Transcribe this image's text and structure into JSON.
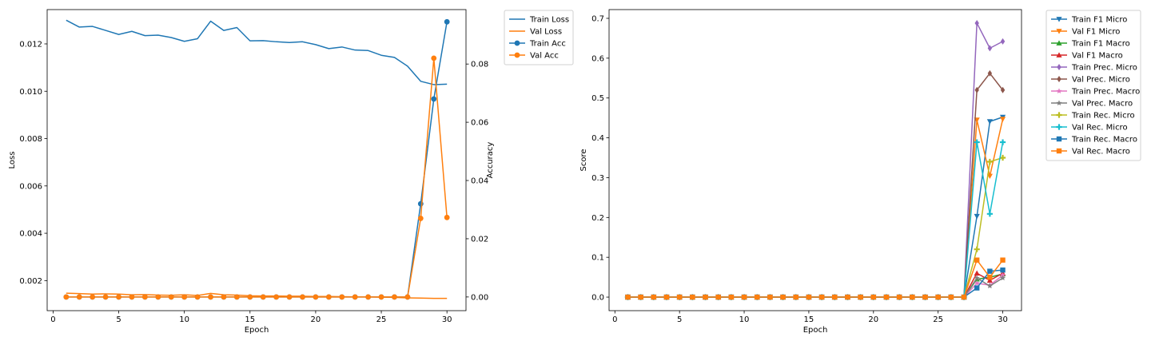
{
  "chart_data": [
    {
      "type": "line",
      "xlabel": "Epoch",
      "ylabel": "Loss",
      "y2label": "Accuracy",
      "legend_position": "outside upper right",
      "x": [
        1,
        2,
        3,
        4,
        5,
        6,
        7,
        8,
        9,
        10,
        11,
        12,
        13,
        14,
        15,
        16,
        17,
        18,
        19,
        20,
        21,
        22,
        23,
        24,
        25,
        26,
        27,
        28,
        29,
        30
      ],
      "xlim": [
        -0.45,
        31.45
      ],
      "ylim": [
        0.00073,
        0.01345
      ],
      "y2lim": [
        -0.0047,
        0.0987
      ],
      "xticks": [
        0,
        5,
        10,
        15,
        20,
        25,
        30
      ],
      "yticks": [
        0.002,
        0.004,
        0.006,
        0.008,
        0.01,
        0.012
      ],
      "ytick_labels": [
        "0.002",
        "0.004",
        "0.006",
        "0.008",
        "0.010",
        "0.012"
      ],
      "y2ticks": [
        0.0,
        0.02,
        0.04,
        0.06,
        0.08
      ],
      "y2tick_labels": [
        "0.00",
        "0.02",
        "0.04",
        "0.06",
        "0.08"
      ],
      "series": [
        {
          "name": "Train Loss",
          "axis": "left",
          "color": "#1f77b4",
          "marker": "none",
          "values": [
            0.013,
            0.01271,
            0.01274,
            0.01257,
            0.0124,
            0.01253,
            0.01235,
            0.01237,
            0.01227,
            0.01211,
            0.01222,
            0.01296,
            0.01257,
            0.01269,
            0.01213,
            0.01214,
            0.01209,
            0.01206,
            0.01209,
            0.01197,
            0.0118,
            0.01187,
            0.01174,
            0.01172,
            0.01152,
            0.01143,
            0.01106,
            0.01042,
            0.01028,
            0.0103
          ]
        },
        {
          "name": "Val Loss",
          "axis": "left",
          "color": "#ff7f0e",
          "marker": "none",
          "values": [
            0.00147,
            0.00145,
            0.00143,
            0.00144,
            0.00143,
            0.0014,
            0.00141,
            0.00139,
            0.00138,
            0.0014,
            0.00137,
            0.00146,
            0.0014,
            0.00139,
            0.00136,
            0.00135,
            0.00135,
            0.00134,
            0.00134,
            0.00133,
            0.00133,
            0.00132,
            0.00131,
            0.00131,
            0.0013,
            0.00129,
            0.00127,
            0.00126,
            0.00125,
            0.00125
          ]
        },
        {
          "name": "Train Acc",
          "axis": "right",
          "color": "#1f77b4",
          "marker": "circle",
          "values": [
            0,
            0,
            0,
            0,
            0,
            0,
            0,
            0,
            0,
            0,
            0,
            0,
            0,
            0,
            0,
            0,
            0,
            0,
            0,
            0,
            0,
            0,
            0,
            0,
            0,
            0,
            0,
            0.032,
            0.068,
            0.0945
          ]
        },
        {
          "name": "Val Acc",
          "axis": "right",
          "color": "#ff7f0e",
          "marker": "circle",
          "values": [
            0,
            0,
            0,
            0,
            0,
            0,
            0,
            0,
            0,
            0,
            0,
            0,
            0,
            0,
            0,
            0,
            0,
            0,
            0,
            0,
            0,
            0,
            0,
            0,
            0,
            0,
            0,
            0.027,
            0.082,
            0.0273
          ]
        }
      ]
    },
    {
      "type": "line",
      "xlabel": "Epoch",
      "ylabel": "Score",
      "legend_position": "outside upper right",
      "x": [
        1,
        2,
        3,
        4,
        5,
        6,
        7,
        8,
        9,
        10,
        11,
        12,
        13,
        14,
        15,
        16,
        17,
        18,
        19,
        20,
        21,
        22,
        23,
        24,
        25,
        26,
        27,
        28,
        29,
        30
      ],
      "xlim": [
        -0.45,
        31.45
      ],
      "ylim": [
        -0.034,
        0.722
      ],
      "xticks": [
        0,
        5,
        10,
        15,
        20,
        25,
        30
      ],
      "yticks": [
        0.0,
        0.1,
        0.2,
        0.3,
        0.4,
        0.5,
        0.6,
        0.7
      ],
      "ytick_labels": [
        "0.0",
        "0.1",
        "0.2",
        "0.3",
        "0.4",
        "0.5",
        "0.6",
        "0.7"
      ],
      "series": [
        {
          "name": "Train F1 Micro",
          "color": "#1f77b4",
          "marker": "triangle-down",
          "tail": [
            0.203,
            0.441,
            0.452
          ]
        },
        {
          "name": "Val F1 Micro",
          "color": "#ff7f0e",
          "marker": "triangle-down",
          "tail": [
            0.445,
            0.304,
            0.447
          ]
        },
        {
          "name": "Train F1 Macro",
          "color": "#2ca02c",
          "marker": "triangle-up",
          "tail": [
            0.045,
            0.05,
            0.058
          ]
        },
        {
          "name": "Val F1 Macro",
          "color": "#d62728",
          "marker": "triangle-up",
          "tail": [
            0.06,
            0.042,
            0.06
          ]
        },
        {
          "name": "Train Prec. Micro",
          "color": "#9467bd",
          "marker": "diamond",
          "tail": [
            0.688,
            0.625,
            0.642
          ]
        },
        {
          "name": "Val Prec. Micro",
          "color": "#8c564b",
          "marker": "diamond",
          "tail": [
            0.52,
            0.562,
            0.52
          ]
        },
        {
          "name": "Train Prec. Macro",
          "color": "#e377c2",
          "marker": "star",
          "tail": [
            0.035,
            0.03,
            0.055
          ]
        },
        {
          "name": "Val Prec. Macro",
          "color": "#7f7f7f",
          "marker": "star",
          "tail": [
            0.048,
            0.028,
            0.048
          ]
        },
        {
          "name": "Train Rec. Micro",
          "color": "#bcbd22",
          "marker": "plus",
          "tail": [
            0.12,
            0.34,
            0.35
          ]
        },
        {
          "name": "Val Rec. Micro",
          "color": "#17becf",
          "marker": "plus",
          "tail": [
            0.389,
            0.209,
            0.389
          ]
        },
        {
          "name": "Train Rec. Macro",
          "color": "#1f77b4",
          "marker": "square",
          "tail": [
            0.023,
            0.065,
            0.068
          ]
        },
        {
          "name": "Val Rec. Macro",
          "color": "#ff7f0e",
          "marker": "square",
          "tail": [
            0.093,
            0.05,
            0.093
          ]
        }
      ]
    }
  ]
}
